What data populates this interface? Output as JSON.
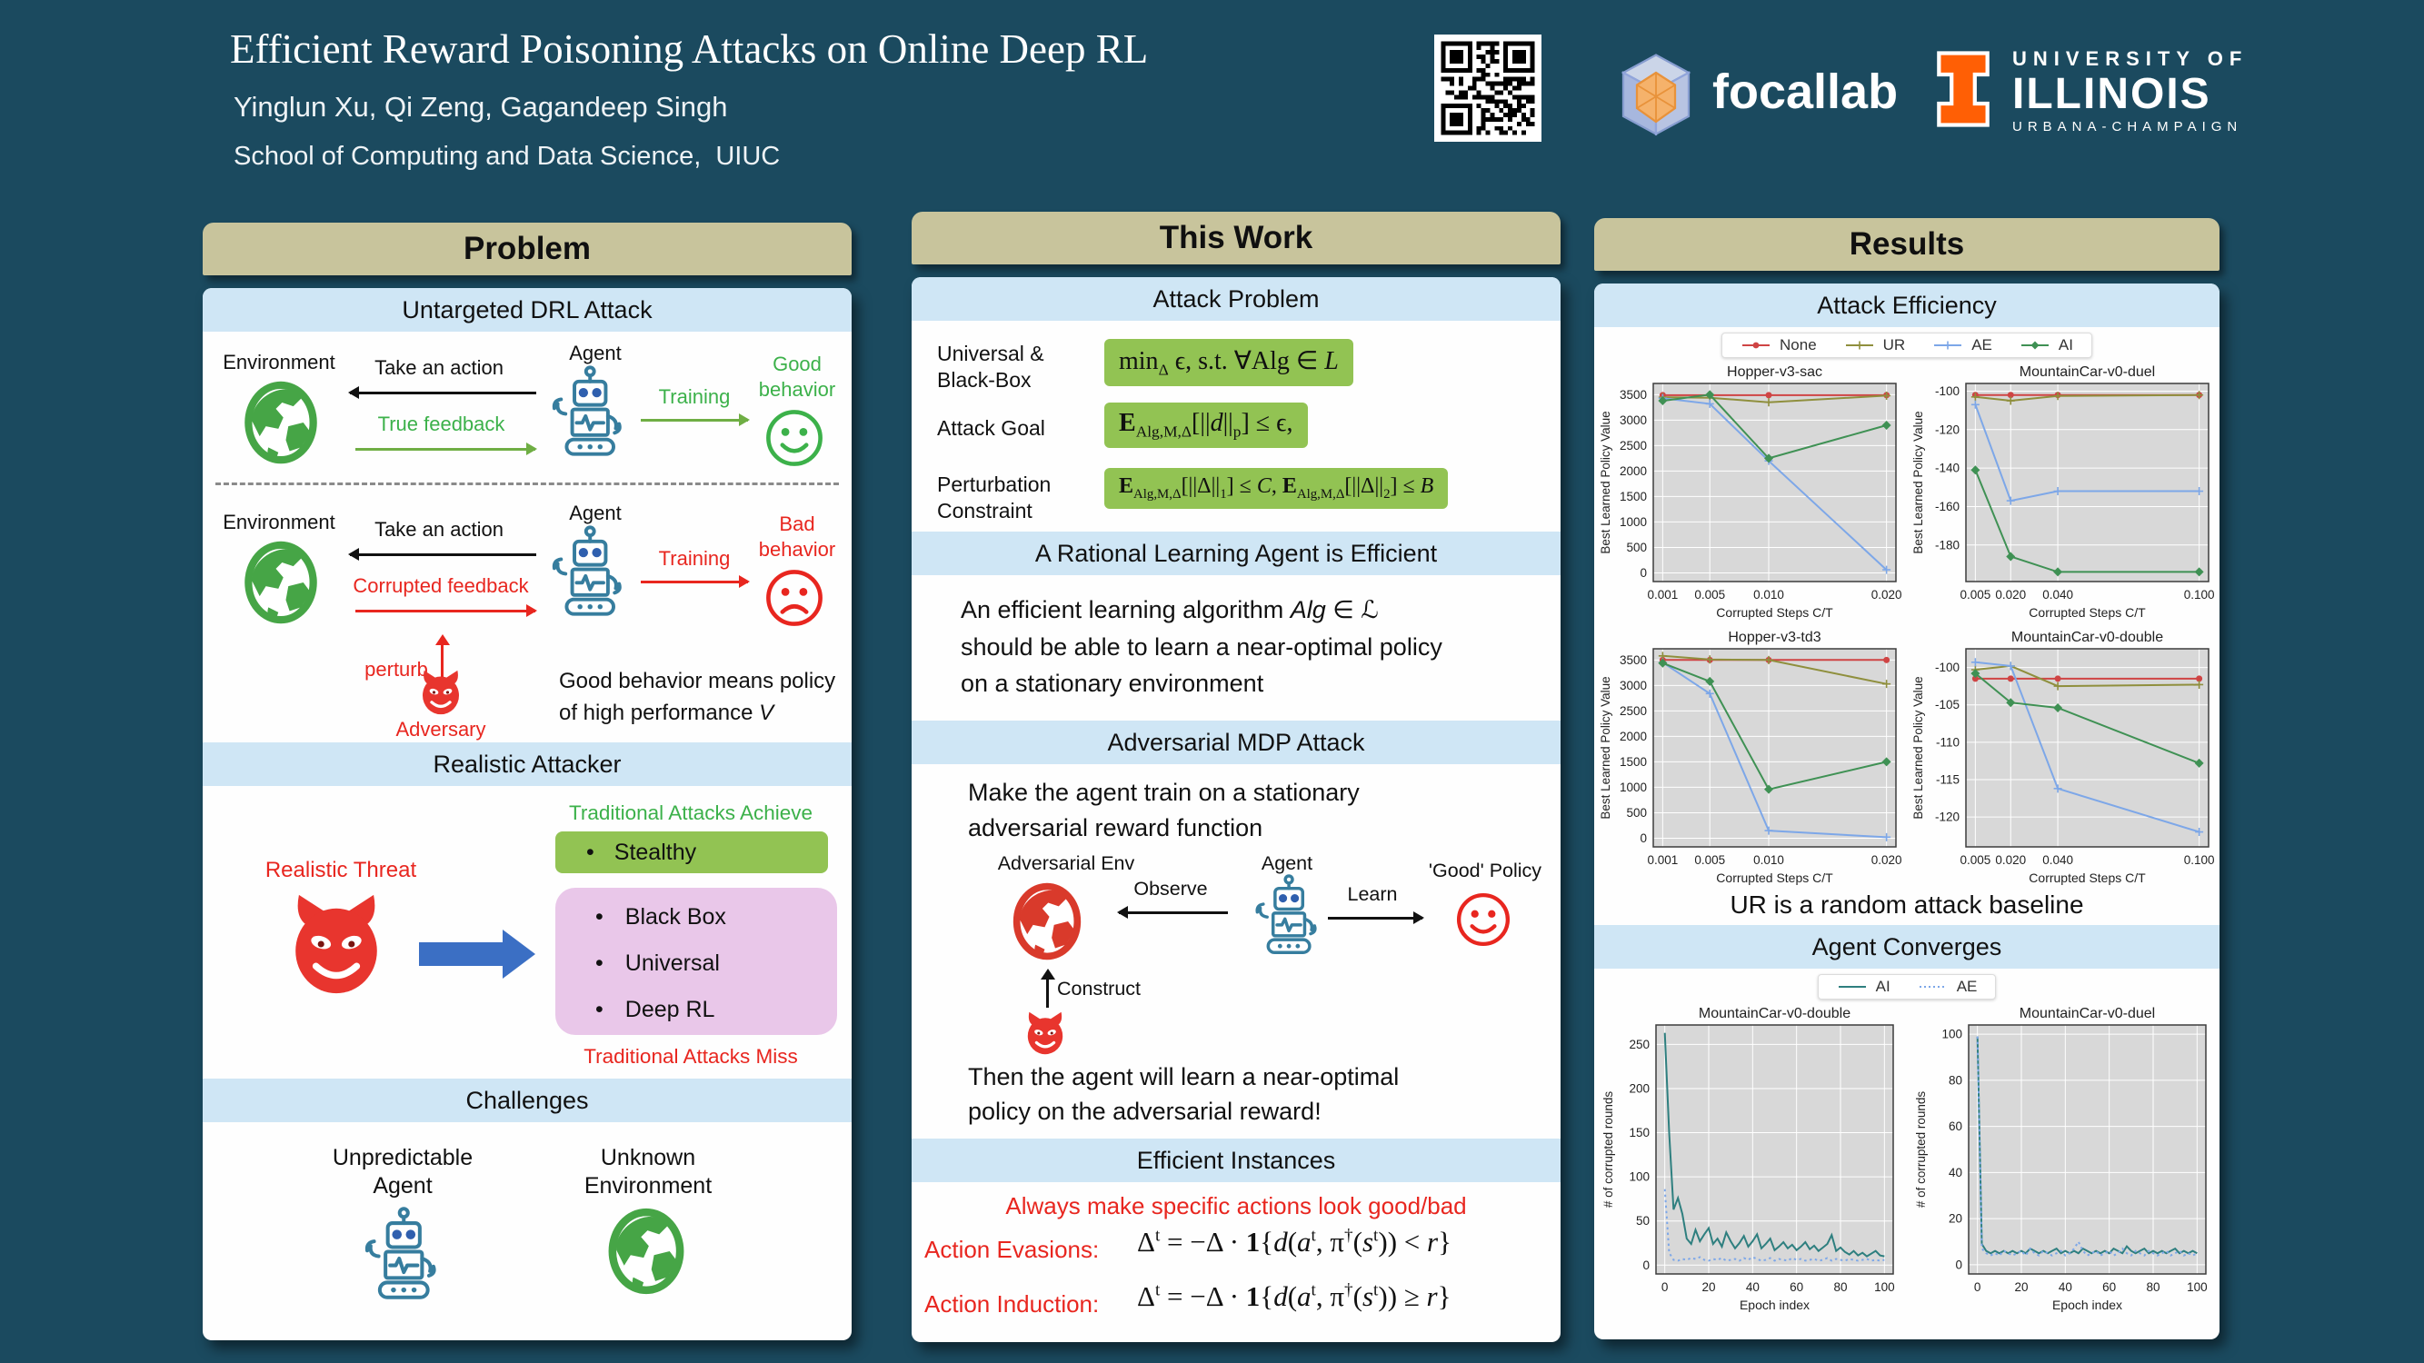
{
  "header": {
    "title": "Efficient Reward Poisoning Attacks on Online Deep RL",
    "authors": "Yinglun Xu, Qi Zeng, Gagandeep Singh",
    "affiliation": "School of Computing and Data Science,  UIUC",
    "focallab": "focallab",
    "uiuc": {
      "l1": "UNIVERSITY OF",
      "l2": "ILLINOIS",
      "l3": "URBANA-CHAMPAIGN"
    }
  },
  "colors": {
    "background": "#1b4a5f",
    "column_header": "#c8c49c",
    "section_header": "#cfe6f5",
    "formula_highlight": "#92c353",
    "pink_box": "#e9c7e9",
    "accent_red": "#e8261f",
    "accent_green": "#3cb14a",
    "blue_arrow": "#3b6fc4",
    "illinois_orange": "#ff5f05"
  },
  "problem": {
    "header": "Problem",
    "untargeted": {
      "title": "Untargeted DRL Attack",
      "env": "Environment",
      "take_action": "Take an action",
      "agent": "Agent",
      "true_feedback": "True feedback",
      "training": "Training",
      "good_behavior_html": "Good<br>behavior",
      "corrupted_feedback": "Corrupted feedback",
      "bad_behavior_html": "Bad<br>behavior",
      "perturb": "perturb",
      "adversary": "Adversary",
      "note_html": "Good behavior means policy<br>of high performance <i>V</i>"
    },
    "realistic": {
      "title": "Realistic Attacker",
      "threat": "Realistic Threat",
      "achieve": "Traditional Attacks Achieve",
      "stealthy": "Stealthy",
      "miss_items": [
        "Black Box",
        "Universal",
        "Deep RL"
      ],
      "miss": "Traditional Attacks Miss"
    },
    "challenges": {
      "title": "Challenges",
      "left_html": "Unpredictable<br>Agent",
      "right_html": "Unknown<br>Environment"
    }
  },
  "this_work": {
    "header": "This Work",
    "attack_problem": {
      "title": "Attack Problem",
      "rows": [
        {
          "label_html": "Universal &amp;<br>Black-Box",
          "formula_html": "min<sub>Δ</sub> ϵ, s.t. ∀Alg ∈ <i>L</i>"
        },
        {
          "label_html": "Attack Goal",
          "formula_html": "<b>E</b><sub>Alg,M,Δ</sub>[||<i>d</i>||<sub>p</sub>] ≤ ϵ,"
        },
        {
          "label_html": "Perturbation<br>Constraint",
          "formula_html": "<b>E</b><sub>Alg,M,Δ</sub>[||Δ||<sub>1</sub>] ≤ <i>C</i>, <b>E</b><sub>Alg,M,Δ</sub>[||Δ||<sub>2</sub>] ≤ <i>B</i>"
        }
      ]
    },
    "rational": {
      "title": "A Rational  Learning Agent is Efficient",
      "body_html": "An efficient learning algorithm <i>Alg</i> ∈ ℒ<br>should be able to learn a near-optimal policy<br>on a stationary environment"
    },
    "mdp": {
      "title": "Adversarial MDP Attack",
      "lead_html": "Make the agent train on a stationary<br>adversarial reward function",
      "env": "Adversarial Env",
      "agent": "Agent",
      "observe": "Observe",
      "learn": "Learn",
      "policy": "'Good' Policy",
      "construct": "Construct",
      "conclusion_html": "Then the agent will learn a near-optimal<br>policy on the adversarial reward!"
    },
    "efficient": {
      "title": "Efficient Instances",
      "lead": "Always make specific actions look good/bad",
      "rows": [
        {
          "label": "Action Evasions:",
          "formula_html": "Δ<sup>t</sup> = −Δ · <b>1</b>{<i>d</i>(<i>a</i><sup>t</sup>, π<sup>†</sup>(<i>s</i><sup>t</sup>)) &lt; <i>r</i>}"
        },
        {
          "label": "Action Induction:",
          "formula_html": "Δ<sup>t</sup> = −Δ · <b>1</b>{<i>d</i>(<i>a</i><sup>t</sup>, π<sup>†</sup>(<i>s</i><sup>t</sup>)) ≥ <i>r</i>}"
        }
      ]
    }
  },
  "results": {
    "header": "Results",
    "efficiency_title": "Attack Efficiency",
    "efficiency_legend": [
      {
        "label": "None",
        "color": "#cf4444",
        "marker": "circle"
      },
      {
        "label": "UR",
        "color": "#8f8f3d",
        "marker": "plus"
      },
      {
        "label": "AE",
        "color": "#7da7e8",
        "marker": "plus"
      },
      {
        "label": "AI",
        "color": "#3f9154",
        "marker": "diamond"
      }
    ],
    "baseline_note": "UR is a random attack baseline",
    "converges_title": "Agent Converges",
    "converges_legend": [
      {
        "label": "AI",
        "color": "#2e7f7f"
      },
      {
        "label": "AE",
        "color": "#7da7e8",
        "style": "dotted"
      }
    ]
  },
  "chart_data": [
    {
      "type": "line",
      "title": "Hopper-v3-sac",
      "xlabel": "Corrupted Steps C/T",
      "ylabel": "Best Learned Policy Value",
      "x": [
        0.001,
        0.005,
        0.01,
        0.02
      ],
      "xlim": [
        0.0002,
        0.0208
      ],
      "ylim": [
        -170,
        3720
      ],
      "xticks": [
        0.001,
        0.005,
        0.01,
        0.02
      ],
      "xtick_labels": [
        "0.001",
        "0.005",
        "0.010",
        "0.020"
      ],
      "yticks": [
        0,
        500,
        1000,
        1500,
        2000,
        2500,
        3000,
        3500
      ],
      "series": [
        {
          "name": "None",
          "color": "#cf4444",
          "marker": "circle",
          "values": [
            3490,
            3490,
            3490,
            3490
          ]
        },
        {
          "name": "UR",
          "color": "#8f8f3d",
          "marker": "plus",
          "values": [
            3450,
            3440,
            3350,
            3480
          ]
        },
        {
          "name": "AE",
          "color": "#7da7e8",
          "marker": "plus",
          "values": [
            3430,
            3320,
            2200,
            60
          ]
        },
        {
          "name": "AI",
          "color": "#3f9154",
          "marker": "diamond",
          "values": [
            3380,
            3500,
            2250,
            2900
          ]
        }
      ]
    },
    {
      "type": "line",
      "title": "MountainCar-v0-duel",
      "xlabel": "Corrupted Steps C/T",
      "ylabel": "Best Learned Policy Value",
      "x": [
        0.005,
        0.02,
        0.04,
        0.1
      ],
      "xlim": [
        0.001,
        0.104
      ],
      "ylim": [
        -199,
        -96
      ],
      "xticks": [
        0.005,
        0.02,
        0.04,
        0.1
      ],
      "xtick_labels": [
        "0.005",
        "0.020",
        "0.040",
        "0.100"
      ],
      "yticks": [
        -180,
        -160,
        -140,
        -120,
        -100
      ],
      "series": [
        {
          "name": "None",
          "color": "#cf4444",
          "marker": "circle",
          "values": [
            -102,
            -102,
            -102,
            -102
          ]
        },
        {
          "name": "UR",
          "color": "#8f8f3d",
          "marker": "plus",
          "values": [
            -103,
            -105,
            -102.5,
            -102
          ]
        },
        {
          "name": "AE",
          "color": "#7da7e8",
          "marker": "plus",
          "values": [
            -107,
            -157,
            -152,
            -152
          ]
        },
        {
          "name": "AI",
          "color": "#3f9154",
          "marker": "diamond",
          "values": [
            -141,
            -186,
            -194,
            -194
          ]
        }
      ]
    },
    {
      "type": "line",
      "title": "Hopper-v3-td3",
      "xlabel": "Corrupted Steps C/T",
      "ylabel": "Best Learned Policy Value",
      "x": [
        0.001,
        0.005,
        0.01,
        0.02
      ],
      "xlim": [
        0.0002,
        0.0208
      ],
      "ylim": [
        -170,
        3720
      ],
      "xticks": [
        0.001,
        0.005,
        0.01,
        0.02
      ],
      "xtick_labels": [
        "0.001",
        "0.005",
        "0.010",
        "0.020"
      ],
      "yticks": [
        0,
        500,
        1000,
        1500,
        2000,
        2500,
        3000,
        3500
      ],
      "series": [
        {
          "name": "None",
          "color": "#cf4444",
          "marker": "circle",
          "values": [
            3500,
            3500,
            3500,
            3500
          ]
        },
        {
          "name": "UR",
          "color": "#8f8f3d",
          "marker": "plus",
          "values": [
            3580,
            3510,
            3500,
            3030
          ]
        },
        {
          "name": "AE",
          "color": "#7da7e8",
          "marker": "plus",
          "values": [
            3450,
            2840,
            150,
            20
          ]
        },
        {
          "name": "AI",
          "color": "#3f9154",
          "marker": "diamond",
          "values": [
            3440,
            3080,
            960,
            1500
          ]
        }
      ]
    },
    {
      "type": "line",
      "title": "MountainCar-v0-double",
      "xlabel": "Corrupted Steps C/T",
      "ylabel": "Best Learned Policy Value",
      "x": [
        0.005,
        0.02,
        0.04,
        0.1
      ],
      "xlim": [
        0.001,
        0.104
      ],
      "ylim": [
        -124,
        -97.5
      ],
      "xticks": [
        0.005,
        0.02,
        0.04,
        0.1
      ],
      "xtick_labels": [
        "0.005",
        "0.020",
        "0.040",
        "0.100"
      ],
      "yticks": [
        -120,
        -115,
        -110,
        -105,
        -100
      ],
      "series": [
        {
          "name": "None",
          "color": "#cf4444",
          "marker": "circle",
          "values": [
            -101.5,
            -101.5,
            -101.5,
            -101.5
          ]
        },
        {
          "name": "UR",
          "color": "#8f8f3d",
          "marker": "plus",
          "values": [
            -100.3,
            -99.8,
            -102.5,
            -102.3
          ]
        },
        {
          "name": "AE",
          "color": "#7da7e8",
          "marker": "plus",
          "values": [
            -99.3,
            -99.8,
            -116.2,
            -122
          ]
        },
        {
          "name": "AI",
          "color": "#3f9154",
          "marker": "diamond",
          "values": [
            -100.8,
            -104.7,
            -105.4,
            -112.8
          ]
        }
      ]
    },
    {
      "type": "line",
      "title": "MountainCar-v0-double",
      "xlabel": "Epoch index",
      "ylabel": "# of corrupted rounds",
      "x": [
        0,
        2,
        4,
        6,
        8,
        10,
        12,
        14,
        16,
        18,
        20,
        22,
        24,
        26,
        28,
        30,
        32,
        34,
        36,
        38,
        40,
        42,
        44,
        46,
        48,
        50,
        52,
        54,
        56,
        58,
        60,
        62,
        64,
        66,
        68,
        70,
        72,
        74,
        76,
        78,
        80,
        82,
        84,
        86,
        88,
        90,
        92,
        94,
        96,
        98,
        100
      ],
      "xlim": [
        -4,
        104
      ],
      "ylim": [
        -10,
        272
      ],
      "xticks": [
        0,
        20,
        40,
        60,
        80,
        100
      ],
      "yticks": [
        0,
        50,
        100,
        150,
        200,
        250
      ],
      "series": [
        {
          "name": "AI",
          "color": "#2e7f7f",
          "values": [
            263,
            150,
            63,
            76,
            58,
            30,
            24,
            40,
            27,
            35,
            42,
            24,
            30,
            21,
            37,
            27,
            19,
            25,
            33,
            21,
            27,
            35,
            19,
            24,
            30,
            17,
            21,
            26,
            19,
            23,
            17,
            21,
            26,
            18,
            22,
            16,
            20,
            24,
            34,
            16,
            20,
            15,
            12,
            16,
            11,
            14,
            10,
            13,
            16,
            11,
            10
          ]
        },
        {
          "name": "AE",
          "color": "#7da7e8",
          "style": "dotted",
          "values": [
            86,
            14,
            6,
            5,
            7,
            6,
            8,
            7,
            9,
            6,
            5,
            7,
            6,
            8,
            5,
            6,
            7,
            5,
            8,
            6,
            9,
            7,
            5,
            6,
            8,
            5,
            7,
            6,
            5,
            8,
            6,
            7,
            5,
            6,
            7,
            5,
            6,
            8,
            5,
            7,
            6,
            5,
            7,
            6,
            5,
            6,
            7,
            5,
            6,
            5,
            6
          ]
        }
      ]
    },
    {
      "type": "line",
      "title": "MountainCar-v0-duel",
      "xlabel": "Epoch index",
      "ylabel": "# of corrupted rounds",
      "x": [
        0,
        2,
        4,
        6,
        8,
        10,
        12,
        14,
        16,
        18,
        20,
        22,
        24,
        26,
        28,
        30,
        32,
        34,
        36,
        38,
        40,
        42,
        44,
        46,
        48,
        50,
        52,
        54,
        56,
        58,
        60,
        62,
        64,
        66,
        68,
        70,
        72,
        74,
        76,
        78,
        80,
        82,
        84,
        86,
        88,
        90,
        92,
        94,
        96,
        98,
        100
      ],
      "xlim": [
        -4,
        104
      ],
      "ylim": [
        -4,
        104
      ],
      "xticks": [
        0,
        20,
        40,
        60,
        80,
        100
      ],
      "yticks": [
        0,
        20,
        40,
        60,
        80,
        100
      ],
      "series": [
        {
          "name": "AI",
          "color": "#2e7f7f",
          "values": [
            99,
            9,
            6,
            5,
            6,
            5,
            6,
            5,
            6,
            5,
            6,
            5,
            7,
            6,
            5,
            6,
            5,
            6,
            7,
            5,
            6,
            5,
            6,
            5,
            7,
            6,
            5,
            6,
            5,
            6,
            5,
            7,
            6,
            5,
            8,
            6,
            5,
            6,
            7,
            5,
            6,
            5,
            6,
            5,
            6,
            7,
            5,
            6,
            5,
            6,
            5
          ]
        },
        {
          "name": "AE",
          "color": "#7da7e8",
          "style": "dotted",
          "values": [
            99,
            7,
            5,
            4,
            5,
            4,
            6,
            5,
            4,
            5,
            6,
            4,
            7,
            5,
            4,
            6,
            5,
            4,
            5,
            6,
            4,
            5,
            7,
            10,
            6,
            4,
            5,
            6,
            4,
            5,
            6,
            4,
            5,
            7,
            5,
            4,
            6,
            5,
            4,
            6,
            5,
            4,
            5,
            6,
            4,
            5,
            6,
            4,
            5,
            4,
            5
          ]
        }
      ]
    }
  ]
}
